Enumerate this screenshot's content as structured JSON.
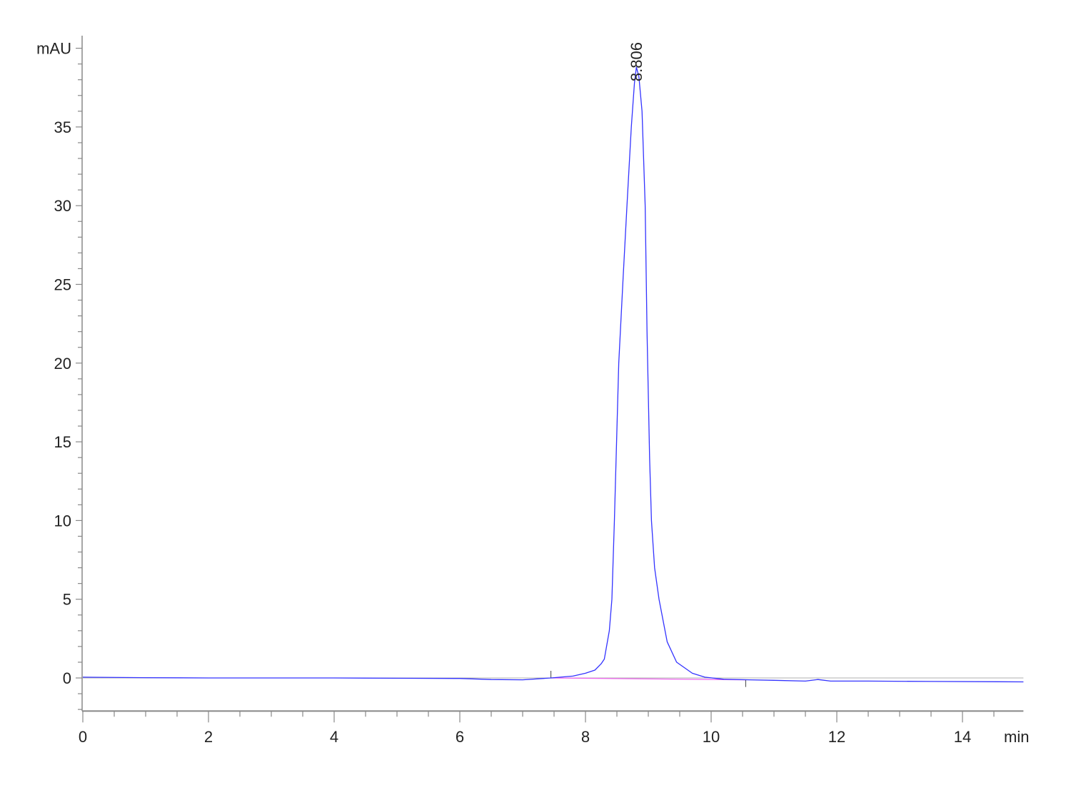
{
  "chart_data": {
    "type": "line",
    "title": "",
    "xlabel": "min",
    "ylabel": "mAU",
    "xlim": [
      0,
      14.97
    ],
    "ylim": [
      -2.1,
      40.8
    ],
    "x_ticks": [
      0,
      2,
      4,
      6,
      8,
      10,
      12,
      14
    ],
    "x_tick_labels": [
      "0",
      "2",
      "4",
      "6",
      "8",
      "10",
      "12",
      "14"
    ],
    "x_minor_step": 0.5,
    "y_ticks": [
      0,
      5,
      10,
      15,
      20,
      25,
      30,
      35
    ],
    "y_tick_labels": [
      "0",
      "5",
      "10",
      "15",
      "20",
      "25",
      "30",
      "35"
    ],
    "y_minor_step": 1,
    "grid": false,
    "colors": {
      "signal": "#3333ff",
      "baseline": "#ee66ee",
      "axis": "#888888"
    },
    "series": [
      {
        "x": [
          0,
          1,
          2,
          3,
          4,
          5,
          6,
          6.5,
          7,
          7.45,
          7.8,
          8.0,
          8.15,
          8.25,
          8.3,
          8.38,
          8.42,
          8.46,
          8.53,
          8.6,
          8.66,
          8.73,
          8.78,
          8.81,
          8.85,
          8.9,
          8.95,
          8.98,
          9.02,
          9.05,
          9.1,
          9.17,
          9.3,
          9.45,
          9.7,
          9.9,
          10.2,
          10.6,
          11,
          11.5,
          11.7,
          11.9,
          12.5,
          13.5,
          14.97
        ],
        "y": [
          0.05,
          0.02,
          0.0,
          0.0,
          0.0,
          -0.02,
          -0.03,
          -0.1,
          -0.12,
          0.0,
          0.12,
          0.3,
          0.5,
          0.9,
          1.2,
          3.0,
          5.0,
          10.0,
          20.0,
          25.5,
          30.0,
          35.0,
          37.8,
          38.8,
          38.2,
          36.0,
          30.0,
          22.0,
          14.0,
          10.0,
          7.0,
          5.0,
          2.3,
          1.0,
          0.3,
          0.05,
          -0.08,
          -0.12,
          -0.15,
          -0.2,
          -0.1,
          -0.2,
          -0.2,
          -0.22,
          -0.25
        ]
      }
    ],
    "baseline": {
      "x": [
        7.45,
        10.55
      ],
      "y": [
        0.0,
        -0.12
      ]
    },
    "annotations": [
      {
        "text": "8.806",
        "x": 8.806,
        "y": 38.8
      }
    ]
  }
}
